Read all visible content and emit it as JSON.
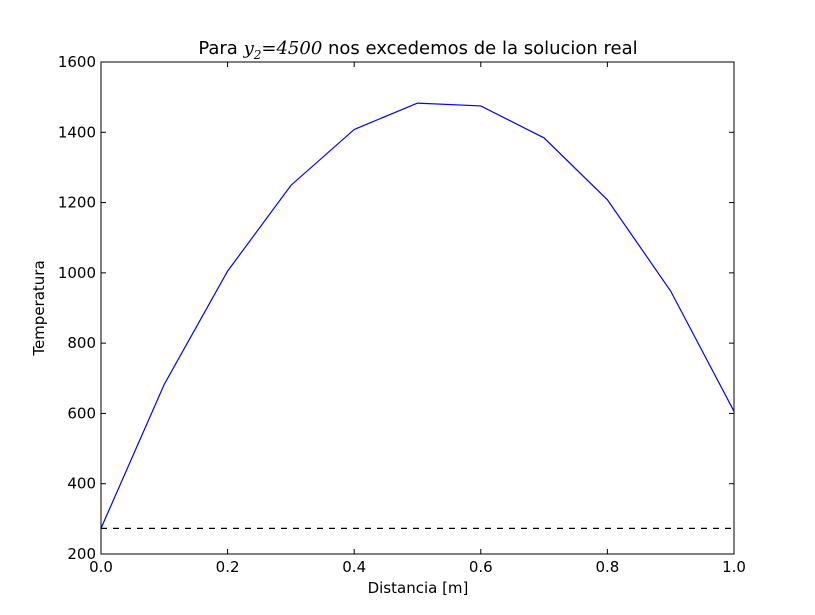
{
  "chart_data": {
    "type": "line",
    "title": {
      "prefix": "Para ",
      "math_var": "y",
      "math_sub": "2",
      "math_rest": "=4500",
      "suffix": " nos excedemos de la solucion real"
    },
    "xlabel": "Distancia [m]",
    "ylabel": "Temperatura",
    "xlim": [
      0.0,
      1.0
    ],
    "ylim": [
      200,
      1600
    ],
    "x_ticks": [
      "0.0",
      "0.2",
      "0.4",
      "0.6",
      "0.8",
      "1.0"
    ],
    "y_ticks": [
      "200",
      "400",
      "600",
      "800",
      "1000",
      "1200",
      "1400",
      "1600"
    ],
    "grid": false,
    "series": [
      {
        "style": "solid",
        "color": "#0000ff",
        "x": [
          0.0,
          0.1,
          0.2,
          0.3,
          0.4,
          0.5,
          0.6,
          0.7,
          0.8,
          0.9,
          1.0
        ],
        "y": [
          273,
          683,
          1005,
          1249,
          1408,
          1483,
          1475,
          1384,
          1208,
          948,
          606
        ]
      },
      {
        "style": "dashed",
        "color": "#000000",
        "x": [
          0.0,
          1.0
        ],
        "y": [
          273,
          273
        ]
      }
    ]
  }
}
